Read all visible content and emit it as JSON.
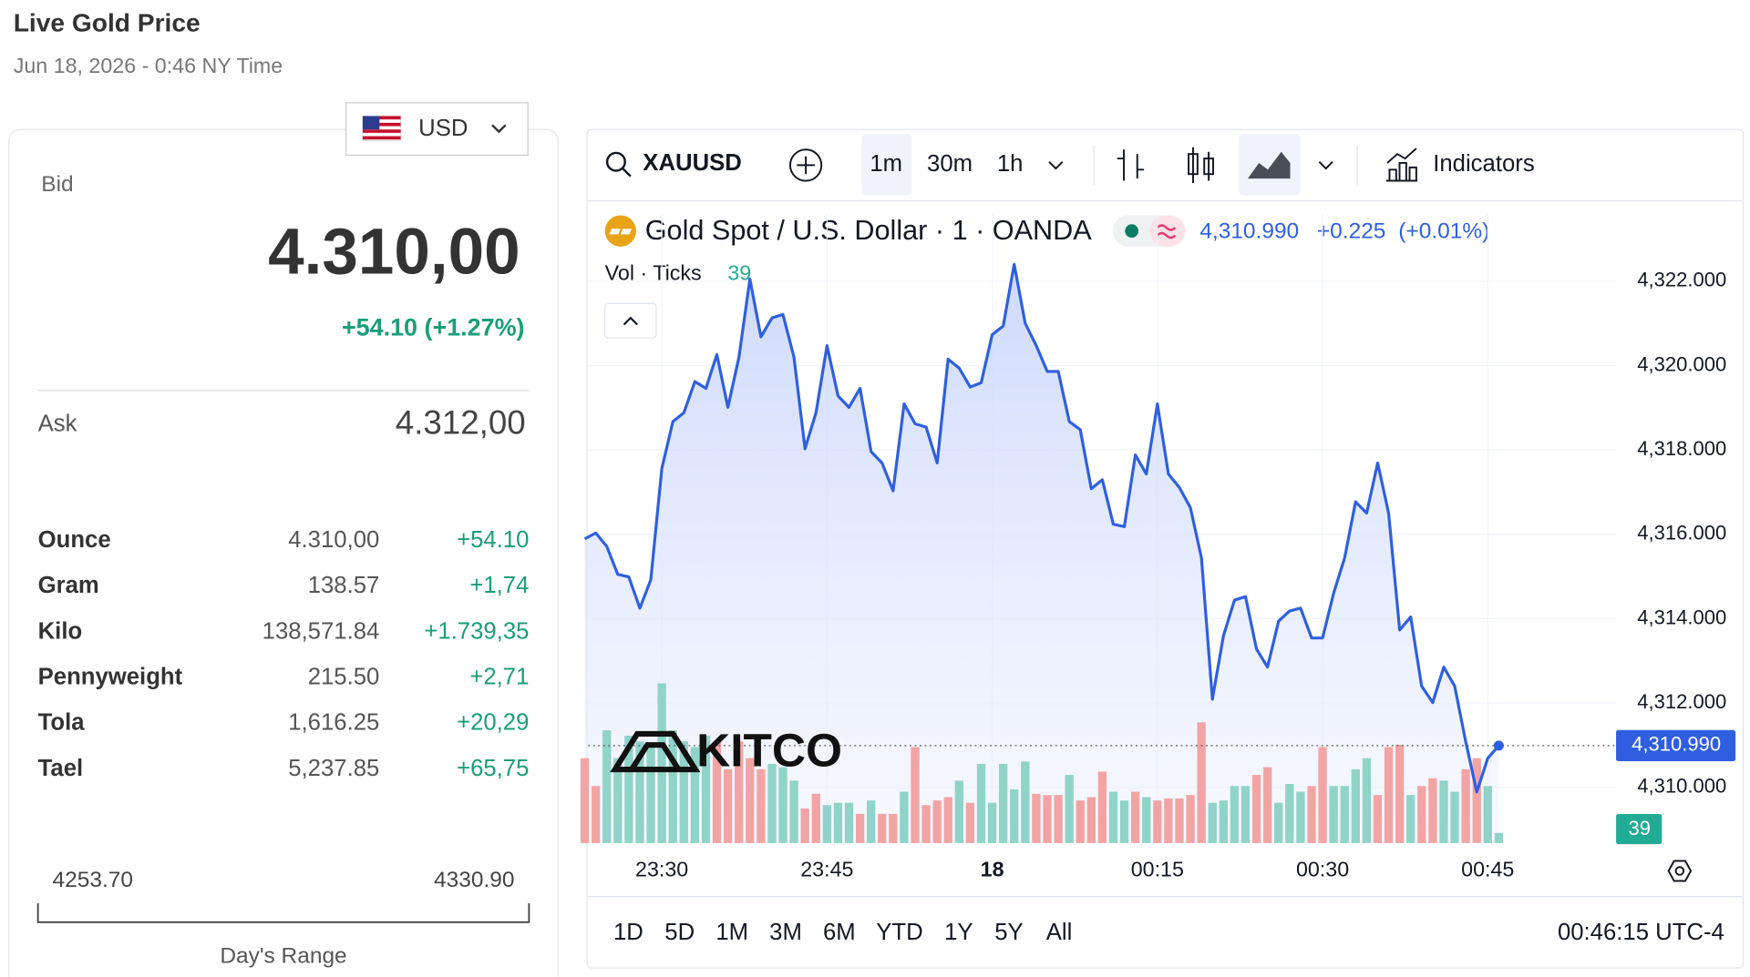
{
  "header": {
    "title": "Live Gold Price",
    "datetime": "Jun 18, 2026 - 0:46 NY Time"
  },
  "currency": "USD",
  "quote": {
    "bid_label": "Bid",
    "bid": "4.310,00",
    "change": "+54.10 (+1.27%)",
    "ask_label": "Ask",
    "ask": "4.312,00"
  },
  "units": [
    [
      "Ounce",
      "4.310,00",
      "+54.10"
    ],
    [
      "Gram",
      "138.57",
      "+1,74"
    ],
    [
      "Kilo",
      "138,571.84",
      "+1.739,35"
    ],
    [
      "Pennyweight",
      "215.50",
      "+2,71"
    ],
    [
      "Tola",
      "1,616.25",
      "+20,29"
    ],
    [
      "Tael",
      "5,237.85",
      "+65,75"
    ]
  ],
  "day_range": {
    "low": "4253.70",
    "high": "4330.90",
    "label": "Day's Range"
  },
  "toolbar": {
    "symbol": "XAUUSD",
    "intervals": [
      "1m",
      "30m",
      "1h"
    ],
    "indicators": "Indicators"
  },
  "legend": {
    "title": "Gold Spot / U.S. Dollar · 1 · OANDA",
    "last": "4,310.990",
    "change": "+0.225",
    "change_pct": "(+0.01%)"
  },
  "brand": "KITCO",
  "ranges": [
    "1D",
    "5D",
    "1M",
    "3M",
    "6M",
    "YTD",
    "1Y",
    "5Y",
    "All"
  ],
  "clock": "00:46:15 UTC-4",
  "chart_data": {
    "type": "line",
    "color": "#2f5fe0",
    "categories": [
      null,
      null,
      null,
      null,
      null,
      null,
      null,
      "23:30",
      null,
      null,
      null,
      null,
      null,
      null,
      null,
      null,
      null,
      null,
      null,
      null,
      null,
      null,
      "23:45",
      null,
      null,
      null,
      null,
      null,
      null,
      null,
      null,
      null,
      null,
      null,
      null,
      null,
      null,
      "18",
      null,
      null,
      null,
      null,
      null,
      null,
      null,
      null,
      null,
      null,
      null,
      null,
      null,
      null,
      "00:15",
      null,
      null,
      null,
      null,
      null,
      null,
      null,
      null,
      null,
      null,
      null,
      null,
      null,
      null,
      "00:30",
      null,
      null,
      null,
      null,
      null,
      null,
      null,
      null,
      null,
      null,
      null,
      null,
      null,
      null,
      "00:45",
      null
    ],
    "values": [
      4315.89,
      4316.03,
      4315.71,
      4315.05,
      4314.99,
      4314.25,
      4314.92,
      4317.56,
      4318.67,
      4318.88,
      4319.62,
      4319.46,
      4320.26,
      4319.01,
      4320.2,
      4322.05,
      4320.68,
      4321.13,
      4321.21,
      4320.2,
      4318.03,
      4318.88,
      4320.47,
      4319.28,
      4319.01,
      4319.46,
      4317.96,
      4317.69,
      4317.03,
      4319.09,
      4318.62,
      4318.54,
      4317.69,
      4320.15,
      4319.94,
      4319.49,
      4319.59,
      4320.73,
      4320.94,
      4322.4,
      4321.0,
      4320.47,
      4319.86,
      4319.86,
      4318.67,
      4318.48,
      4317.08,
      4317.29,
      4316.24,
      4316.18,
      4317.88,
      4317.43,
      4319.09,
      4317.43,
      4317.11,
      4316.63,
      4315.44,
      4312.09,
      4313.59,
      4314.44,
      4314.52,
      4313.28,
      4312.85,
      4313.94,
      4314.18,
      4314.25,
      4313.54,
      4313.54,
      4314.6,
      4315.44,
      4316.77,
      4316.5,
      4317.69,
      4316.5,
      4313.73,
      4314.04,
      4312.4,
      4312.01,
      4312.85,
      4312.4,
      4311.08,
      4309.89,
      4310.69,
      4310.99
    ],
    "ylim": [
      4308.68,
      4322.53
    ],
    "yticks": [
      {
        "value": 4310,
        "label": "4,310.000"
      },
      {
        "value": 4312,
        "label": "4,312.000"
      },
      {
        "value": 4314,
        "label": "4,314.000"
      },
      {
        "value": 4316,
        "label": "4,316.000"
      },
      {
        "value": 4318,
        "label": "4,318.000"
      },
      {
        "value": 4320,
        "label": "4,320.000"
      },
      {
        "value": 4322,
        "label": "4,322.000"
      }
    ],
    "grid": true,
    "volume": {
      "name": "Vol · Ticks",
      "values": [
        329,
        221,
        437,
        329,
        416,
        394,
        372,
        619,
        437,
        394,
        372,
        416,
        394,
        286,
        394,
        329,
        286,
        307,
        294,
        242,
        134,
        191,
        147,
        156,
        156,
        113,
        165,
        113,
        113,
        199,
        372,
        147,
        165,
        178,
        242,
        156,
        307,
        156,
        307,
        208,
        316,
        191,
        186,
        186,
        264,
        165,
        178,
        277,
        199,
        165,
        199,
        178,
        165,
        173,
        173,
        186,
        468,
        156,
        165,
        221,
        221,
        264,
        294,
        156,
        229,
        199,
        221,
        372,
        221,
        221,
        286,
        329,
        186,
        372,
        381,
        186,
        221,
        251,
        242,
        199,
        286,
        329,
        221,
        39
      ],
      "colors": [
        "#f2a4a4",
        "#f2a4a4",
        "#8fd3c9",
        "#8fd3c9",
        "#8fd3c9",
        "#8fd3c9",
        "#8fd3c9",
        "#8fd3c9",
        "#8fd3c9",
        "#8fd3c9",
        "#8fd3c9",
        "#8fd3c9",
        "#f2a4a4",
        "#f2a4a4",
        "#f2a4a4",
        "#f2a4a4",
        "#f2a4a4",
        "#8fd3c9",
        "#8fd3c9",
        "#8fd3c9",
        "#f2a4a4",
        "#f2a4a4",
        "#8fd3c9",
        "#8fd3c9",
        "#8fd3c9",
        "#f2a4a4",
        "#8fd3c9",
        "#f2a4a4",
        "#f2a4a4",
        "#8fd3c9",
        "#f2a4a4",
        "#f2a4a4",
        "#f2a4a4",
        "#f2a4a4",
        "#8fd3c9",
        "#f2a4a4",
        "#8fd3c9",
        "#8fd3c9",
        "#8fd3c9",
        "#8fd3c9",
        "#8fd3c9",
        "#f2a4a4",
        "#f2a4a4",
        "#f2a4a4",
        "#8fd3c9",
        "#f2a4a4",
        "#f2a4a4",
        "#f2a4a4",
        "#8fd3c9",
        "#8fd3c9",
        "#f2a4a4",
        "#8fd3c9",
        "#f2a4a4",
        "#f2a4a4",
        "#f2a4a4",
        "#f2a4a4",
        "#f2a4a4",
        "#8fd3c9",
        "#8fd3c9",
        "#8fd3c9",
        "#8fd3c9",
        "#f2a4a4",
        "#f2a4a4",
        "#8fd3c9",
        "#8fd3c9",
        "#8fd3c9",
        "#f2a4a4",
        "#f2a4a4",
        "#8fd3c9",
        "#8fd3c9",
        "#8fd3c9",
        "#8fd3c9",
        "#f2a4a4",
        "#f2a4a4",
        "#f2a4a4",
        "#8fd3c9",
        "#f2a4a4",
        "#f2a4a4",
        "#8fd3c9",
        "#8fd3c9",
        "#f2a4a4",
        "#f2a4a4",
        "#8fd3c9",
        "#8fd3c9"
      ],
      "vlim": [
        0,
        700
      ]
    }
  }
}
